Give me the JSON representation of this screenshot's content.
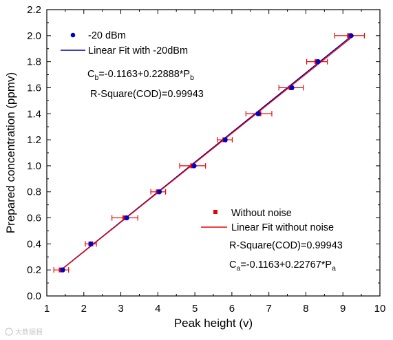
{
  "chart_data": {
    "type": "scatter",
    "xlabel": "Peak height (v)",
    "ylabel": "Prepared concentration (ppmv)",
    "xlim": [
      1,
      10
    ],
    "ylim": [
      0.0,
      2.2
    ],
    "x_ticks": [
      "1",
      "2",
      "3",
      "4",
      "5",
      "6",
      "7",
      "8",
      "9",
      "10"
    ],
    "y_ticks": [
      "0.0",
      "0.2",
      "0.4",
      "0.6",
      "0.8",
      "1.0",
      "1.2",
      "1.4",
      "1.6",
      "1.8",
      "2.0",
      "2.2"
    ],
    "legend_top": [
      {
        "label": "-20 dBm",
        "marker": "circle",
        "color": "#0000cc"
      },
      {
        "label": "Linear Fit with -20dBm",
        "marker": "line",
        "color": "#0000aa"
      }
    ],
    "legend_bottom": [
      {
        "label": "Without noise",
        "marker": "square",
        "color": "#ee0000"
      },
      {
        "label": "Linear Fit without noise",
        "marker": "line",
        "color": "#ee0000"
      }
    ],
    "annotations": {
      "fit_b": {
        "prefix": "C",
        "sub1": "b",
        "middle": "=-0.1163+0.22888*P",
        "sub2": "b"
      },
      "r_square_b": "R-Square(COD)=0.99943",
      "r_square_a": "R-Square(COD)=0.99943",
      "fit_a": {
        "prefix": "C",
        "sub1": "a",
        "middle": "=-0.1163+0.22767*P",
        "sub2": "a"
      }
    },
    "series": [
      {
        "name": "-20 dBm",
        "color": "#0000cc",
        "marker": "circle",
        "x": [
          1.43,
          2.19,
          3.16,
          4.04,
          4.98,
          5.82,
          6.71,
          7.62,
          8.33,
          9.22
        ],
        "y": [
          0.2,
          0.4,
          0.6,
          0.8,
          1.0,
          1.2,
          1.4,
          1.6,
          1.8,
          2.0
        ]
      },
      {
        "name": "Without noise",
        "color": "#ee0000",
        "marker": "square",
        "x": [
          1.39,
          2.19,
          3.11,
          4.01,
          4.94,
          5.81,
          6.73,
          7.6,
          8.3,
          9.18
        ],
        "y": [
          0.2,
          0.4,
          0.6,
          0.8,
          1.0,
          1.2,
          1.4,
          1.6,
          1.8,
          2.0
        ],
        "x_error": [
          0.2,
          0.15,
          0.35,
          0.2,
          0.35,
          0.2,
          0.35,
          0.33,
          0.28,
          0.4
        ]
      }
    ],
    "fits": [
      {
        "name": "Linear Fit with -20dBm",
        "color": "#0000aa",
        "x_range": [
          1.38,
          9.25
        ],
        "intercept": -0.1163,
        "slope": 0.22888
      },
      {
        "name": "Linear Fit without noise",
        "color": "#ee0000",
        "x_range": [
          1.38,
          9.3
        ],
        "intercept": -0.1163,
        "slope": 0.22767
      }
    ]
  },
  "watermark": "大数据报"
}
